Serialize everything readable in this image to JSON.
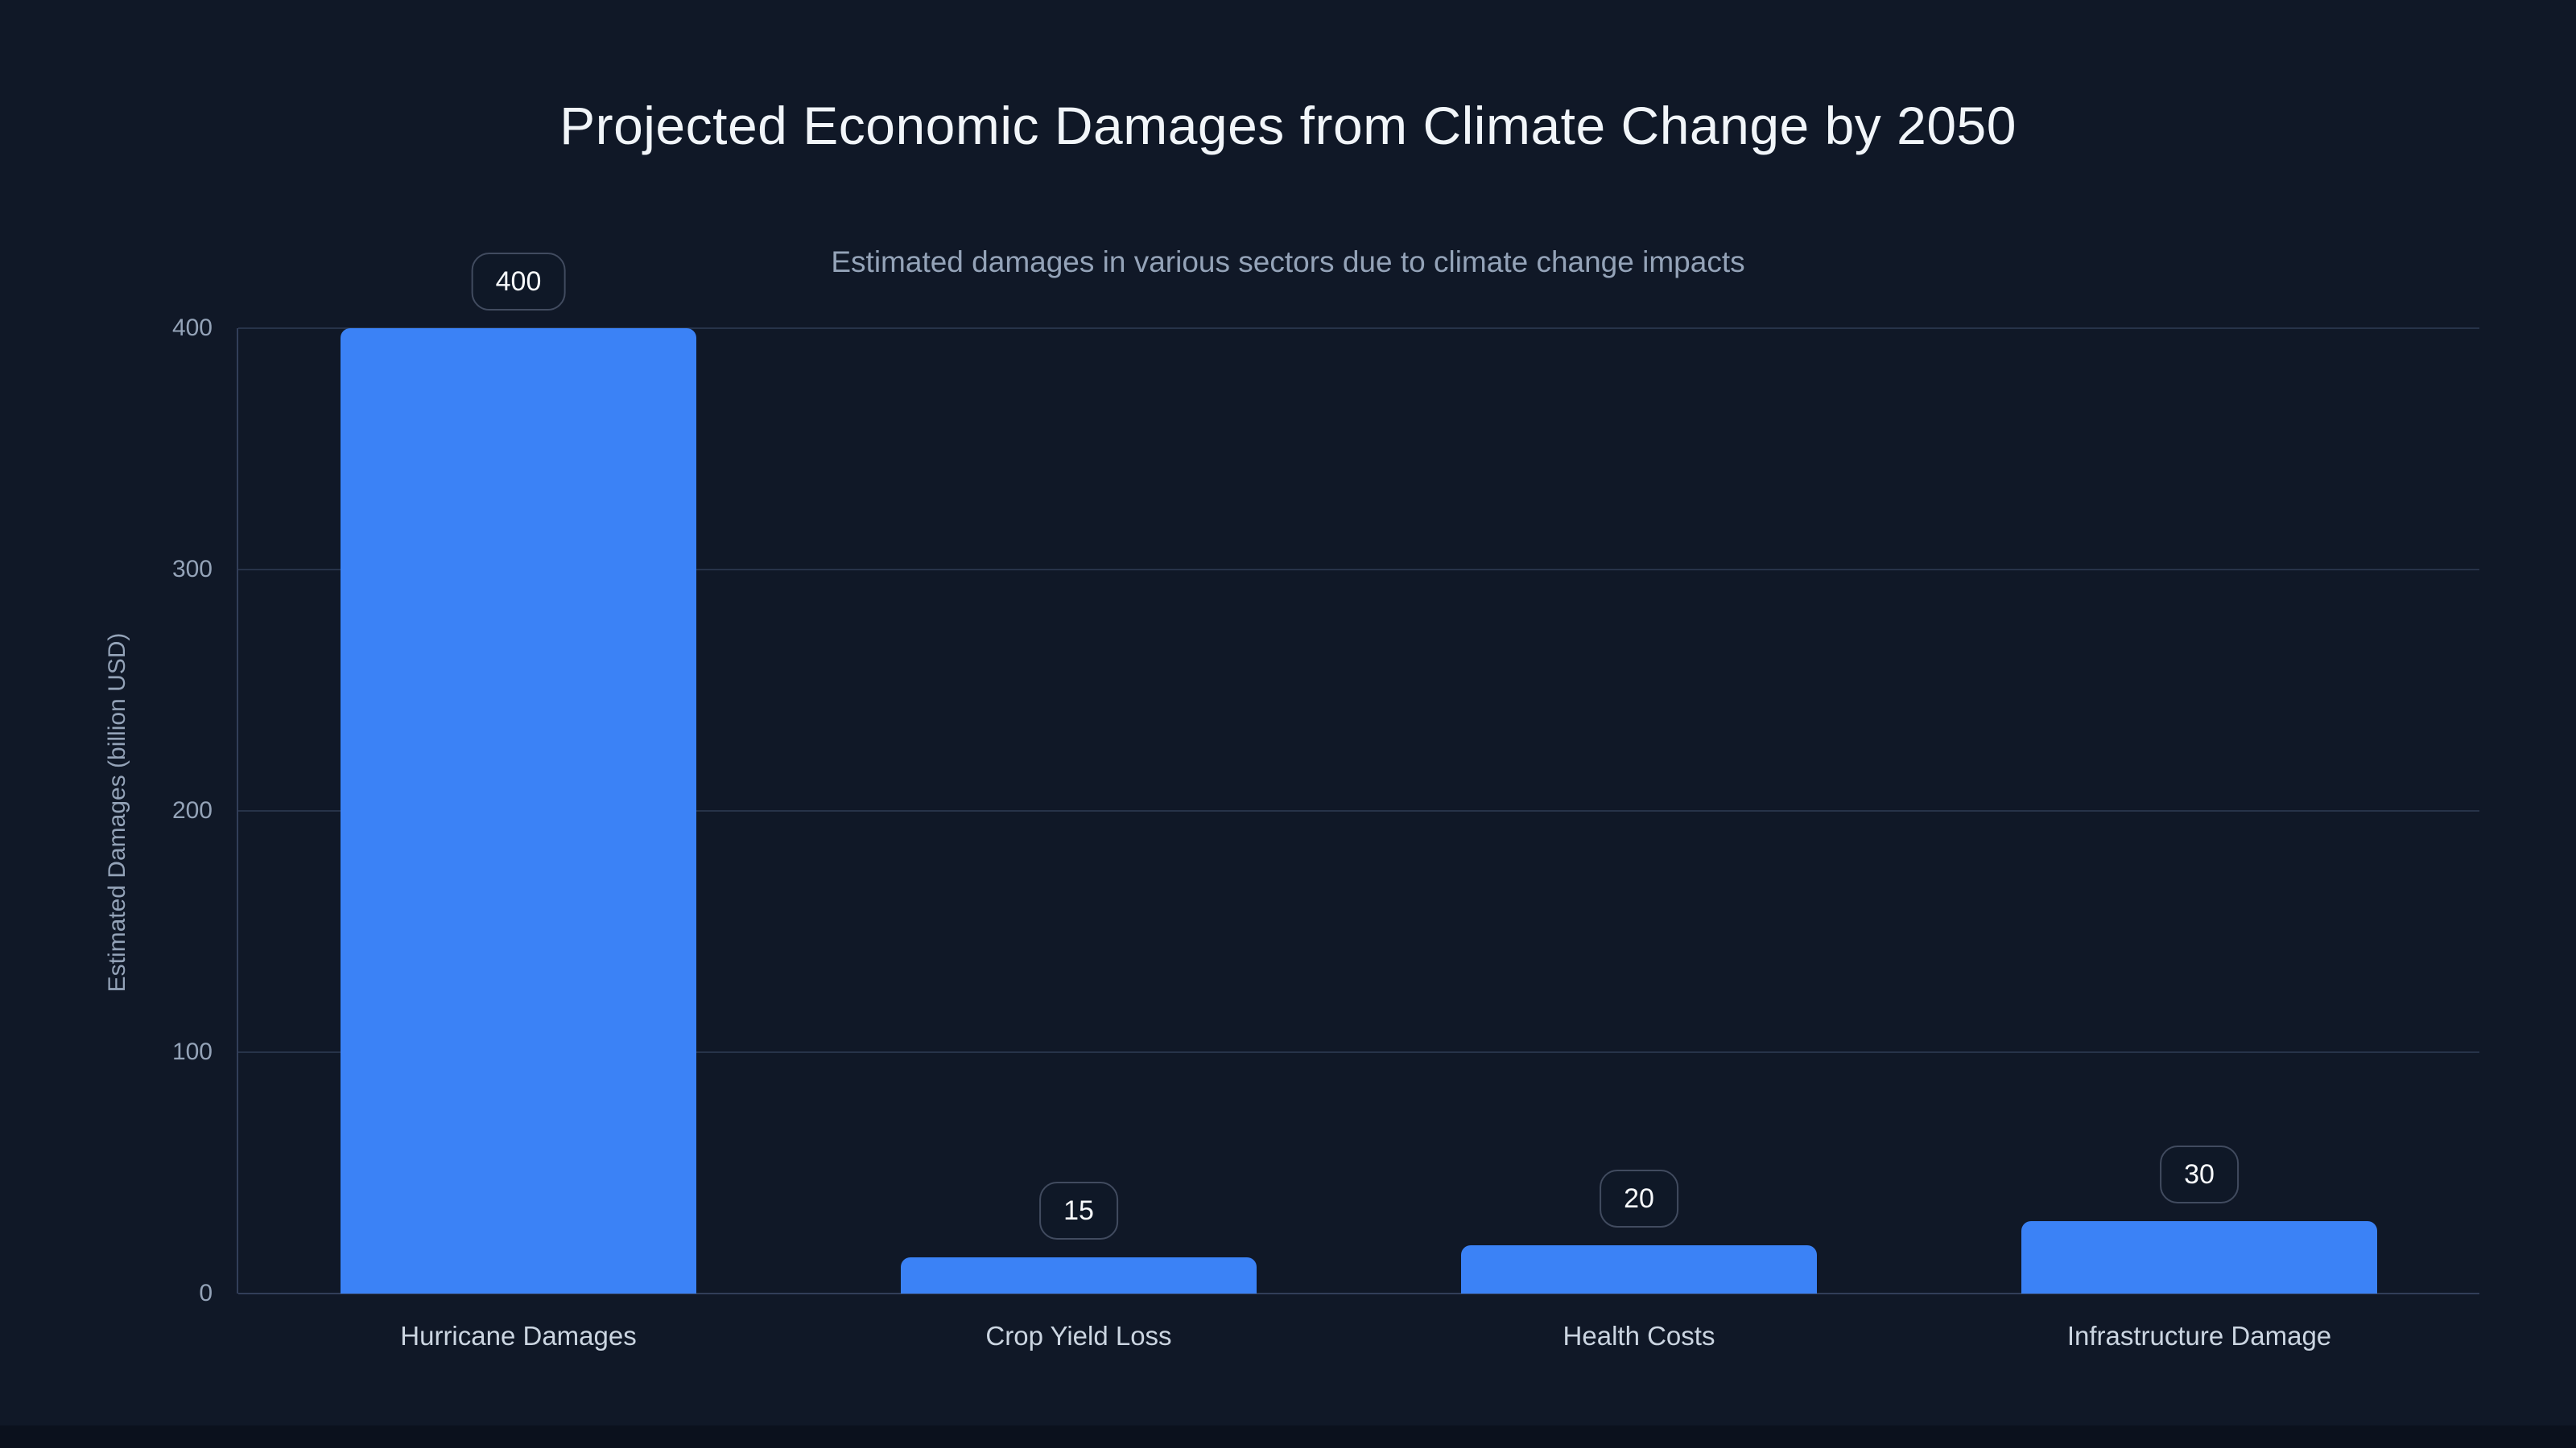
{
  "page": {
    "title": "Projected Economic Damages from Climate Change by 2050",
    "subtitle": "Estimated damages in various sectors due to climate change impacts"
  },
  "chart_data": {
    "type": "bar",
    "title": "Projected Economic Damages from Climate Change by 2050",
    "subtitle": "Estimated damages in various sectors due to climate change impacts",
    "categories": [
      "Hurricane Damages",
      "Crop Yield Loss",
      "Health Costs",
      "Infrastructure Damage"
    ],
    "values": [
      400,
      15,
      20,
      30
    ],
    "value_labels": [
      "400",
      "15",
      "20",
      "30"
    ],
    "xlabel": "",
    "ylabel": "Estimated Damages (billion USD)",
    "ylim": [
      0,
      400
    ],
    "yticks": [
      0,
      100,
      200,
      300,
      400
    ],
    "grid": true,
    "legend": false
  },
  "colors": {
    "page_background": "#0b111d",
    "chart_background": "#101827",
    "bar": "#3b82f6",
    "title_text": "#f1f5f9",
    "subtitle_text": "#94a3b8",
    "tick_text": "#94a3b8",
    "category_text": "#cbd5e1",
    "gridline": "#273349",
    "axis_line": "#323e59",
    "value_pill_border": "#414b5f",
    "value_pill_text": "#f8fafc"
  }
}
